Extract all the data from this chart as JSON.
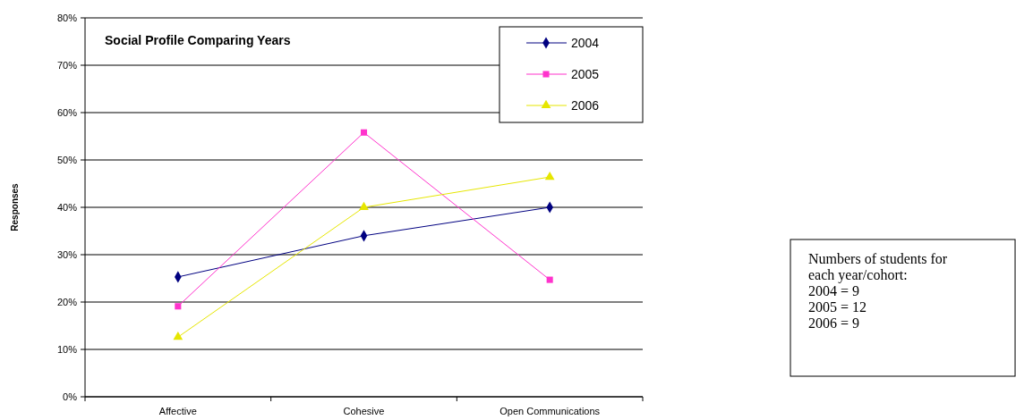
{
  "chart_data": {
    "type": "line",
    "title": "Social Profile Comparing Years",
    "ylabel": "Responses",
    "categories": [
      "Affective",
      "Cohesive",
      "Open Communications"
    ],
    "series": [
      {
        "name": "2004",
        "color": "#000080",
        "marker": "diamond",
        "values": [
          25.3,
          34.0,
          40.0
        ]
      },
      {
        "name": "2005",
        "color": "#ff33cc",
        "marker": "square",
        "values": [
          19.1,
          55.8,
          24.7
        ]
      },
      {
        "name": "2006",
        "color": "#e6e600",
        "marker": "triangle",
        "values": [
          12.6,
          40.0,
          46.4
        ]
      }
    ],
    "ylim": [
      0,
      80
    ],
    "yticks": [
      {
        "value": 0,
        "label": "0%"
      },
      {
        "value": 10,
        "label": "10%"
      },
      {
        "value": 20,
        "label": "20%"
      },
      {
        "value": 30,
        "label": "30%"
      },
      {
        "value": 40,
        "label": "40%"
      },
      {
        "value": 50,
        "label": "50%"
      },
      {
        "value": 60,
        "label": "60%"
      },
      {
        "value": 70,
        "label": "70%"
      },
      {
        "value": 80,
        "label": "80%"
      }
    ],
    "grid": "y",
    "legend": "top right",
    "annotations": [
      "Numbers of students for\neach year/cohort:\n2004 = 9\n2005 = 12\n2006 = 9"
    ]
  }
}
